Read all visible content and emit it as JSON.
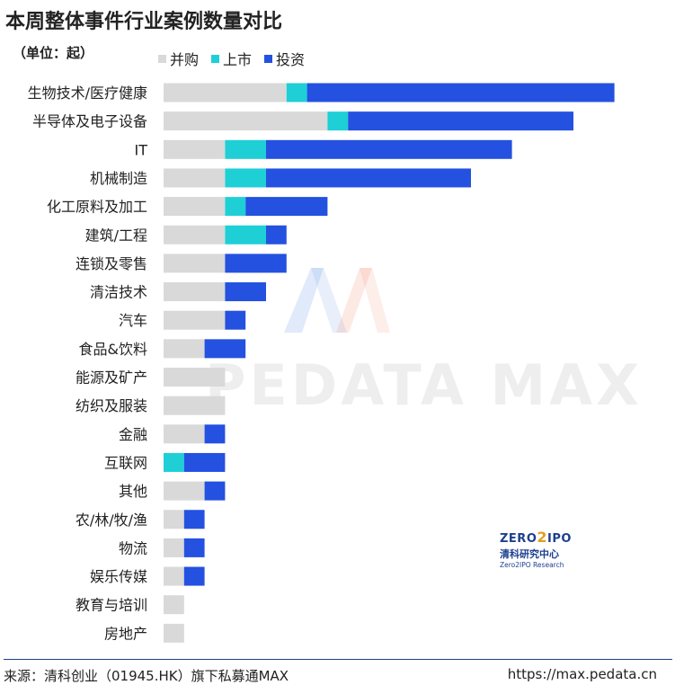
{
  "header": {
    "title": "本周整体事件行业案例数量对比",
    "unit": "（单位：起）"
  },
  "footer": {
    "source": "来源：清科创业（01945.HK）旗下私募通MAX",
    "url": "https://max.pedata.cn"
  },
  "watermark": {
    "text": "PEDATA MAX"
  },
  "logo": {
    "top_left": "ZERO",
    "top_mid": "2",
    "top_right": "IPO",
    "cn": "清科研究中心",
    "en": "Zero2IPO Research"
  },
  "chart_data": {
    "type": "bar",
    "orientation": "horizontal",
    "stacked": true,
    "title": "本周整体事件行业案例数量对比",
    "categories": [
      "生物技术/医疗健康",
      "半导体及电子设备",
      "IT",
      "机械制造",
      "化工原料及加工",
      "建筑/工程",
      "连锁及零售",
      "清洁技术",
      "汽车",
      "食品&饮料",
      "能源及矿产",
      "纺织及服装",
      "金融",
      "互联网",
      "其他",
      "农/林/牧/渔",
      "物流",
      "娱乐传媒",
      "教育与培训",
      "房地产"
    ],
    "series": [
      {
        "name": "并购",
        "color": "#d9d9d9",
        "values": [
          6,
          8,
          3,
          3,
          3,
          3,
          3,
          3,
          3,
          2,
          3,
          3,
          2,
          0,
          2,
          1,
          1,
          1,
          1,
          1
        ]
      },
      {
        "name": "上市",
        "color": "#1ecfd6",
        "values": [
          1,
          1,
          2,
          2,
          1,
          2,
          0,
          0,
          0,
          0,
          0,
          0,
          0,
          1,
          0,
          0,
          0,
          0,
          0,
          0
        ]
      },
      {
        "name": "投资",
        "color": "#2451e0",
        "values": [
          15,
          11,
          12,
          10,
          4,
          1,
          3,
          2,
          1,
          2,
          0,
          0,
          1,
          2,
          1,
          1,
          1,
          1,
          0,
          0
        ]
      }
    ]
  }
}
